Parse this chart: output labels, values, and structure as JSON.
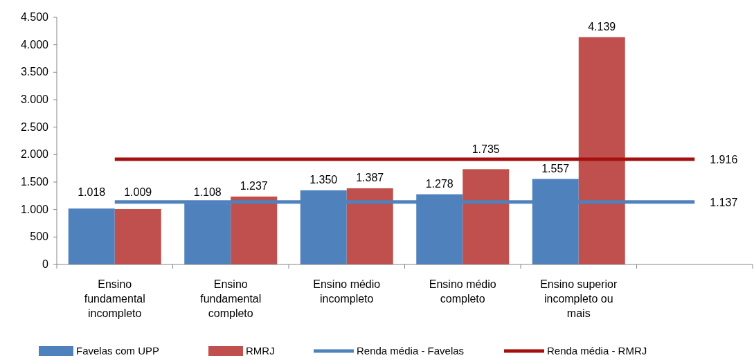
{
  "chart_data": {
    "type": "bar",
    "categories": [
      "Ensino fundamental incompleto",
      "Ensino fundamental completo",
      "Ensino médio incompleto",
      "Ensino médio completo",
      "Ensino superior incompleto ou mais",
      null
    ],
    "series": [
      {
        "name": "Favelas com UPP",
        "color": "#4f81bd",
        "values": [
          1018,
          1108,
          1350,
          1278,
          1557,
          null
        ],
        "value_labels": [
          "1.018",
          "1.108",
          "1.350",
          "1.278",
          "1.557",
          null
        ]
      },
      {
        "name": "RMRJ",
        "color": "#c0504d",
        "values": [
          1009,
          1237,
          1387,
          1735,
          4139,
          null
        ],
        "value_labels": [
          "1.009",
          "1.237",
          "1.387",
          "1.735",
          "4.139",
          null
        ]
      },
      {
        "name": "Renda média - Favelas",
        "type": "line",
        "color": "#4f81bd",
        "values": [
          1137,
          1137,
          1137,
          1137,
          1137,
          1137
        ],
        "value_labels": [
          null,
          null,
          null,
          null,
          null,
          "1.137"
        ]
      },
      {
        "name": "Renda média - RMRJ",
        "type": "line",
        "color": "#a50f0f",
        "values": [
          1916,
          1916,
          1916,
          1916,
          1916,
          1916
        ],
        "value_labels": [
          null,
          null,
          null,
          null,
          null,
          "1.916"
        ]
      }
    ],
    "ylim": [
      0,
      4500
    ],
    "yticks": [
      0,
      {
        "value": 500,
        "label": "500"
      },
      {
        "value": 1000,
        "label": "1.000"
      },
      {
        "value": 1500,
        "label": "1.500"
      },
      {
        "value": 2000,
        "label": "2.000"
      },
      {
        "value": 2500,
        "label": "2.500"
      },
      {
        "value": 3000,
        "label": "3.000"
      },
      {
        "value": 3500,
        "label": "3.500"
      },
      {
        "value": 4000,
        "label": "4.000"
      },
      {
        "value": 4500,
        "label": "4.500"
      }
    ],
    "legend": "bottom",
    "grid": false,
    "marker": "none"
  }
}
